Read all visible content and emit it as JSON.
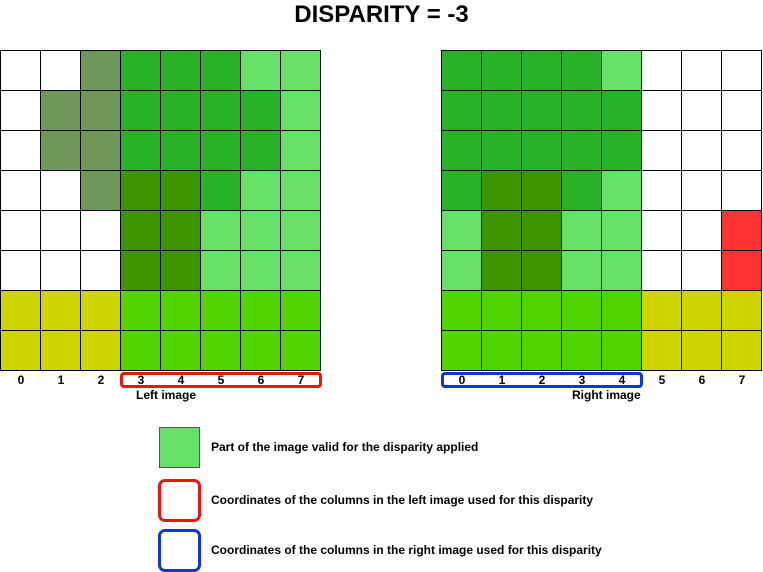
{
  "title": "DISPARITY = -3",
  "colors": {
    "W": "#ffffff",
    "G": "#28b228",
    "L": "#66e066",
    "O": "#6f9759",
    "D": "#3d9500",
    "B": "#52d400",
    "Y": "#cdd400",
    "R": "#ff3333",
    "highlight_left": "#e51616",
    "highlight_right": "#1133dd"
  },
  "left_image": {
    "label": "Left image",
    "rows": [
      "WWOGGGLL",
      "WOOGGGGL",
      "WOOGGGGL",
      "WWODDGLL",
      "WWWDDLLL",
      "WWWDDLLL",
      "YYYBBBBB",
      "YYYBBBBB"
    ],
    "column_labels": [
      "0",
      "1",
      "2",
      "3",
      "4",
      "5",
      "6",
      "7"
    ],
    "highlighted_columns": [
      3,
      4,
      5,
      6,
      7
    ]
  },
  "right_image": {
    "label": "Right image",
    "rows": [
      "GGGGLWWW",
      "GGGGGWWW",
      "GGGGGWWW",
      "GDDGLWWW",
      "LDDLLWWR",
      "LDDLLWWR",
      "BBBBBYYY",
      "BBBBBYYY"
    ],
    "column_labels": [
      "0",
      "1",
      "2",
      "3",
      "4",
      "5",
      "6",
      "7"
    ],
    "highlighted_columns": [
      0,
      1,
      2,
      3,
      4
    ]
  },
  "legend": {
    "valid_text": "Part of the image valid for the disparity applied",
    "left_cols_text": "Coordinates of the columns in the left image used for this disparity",
    "right_cols_text": "Coordinates of the columns in the right image used for this disparity"
  }
}
